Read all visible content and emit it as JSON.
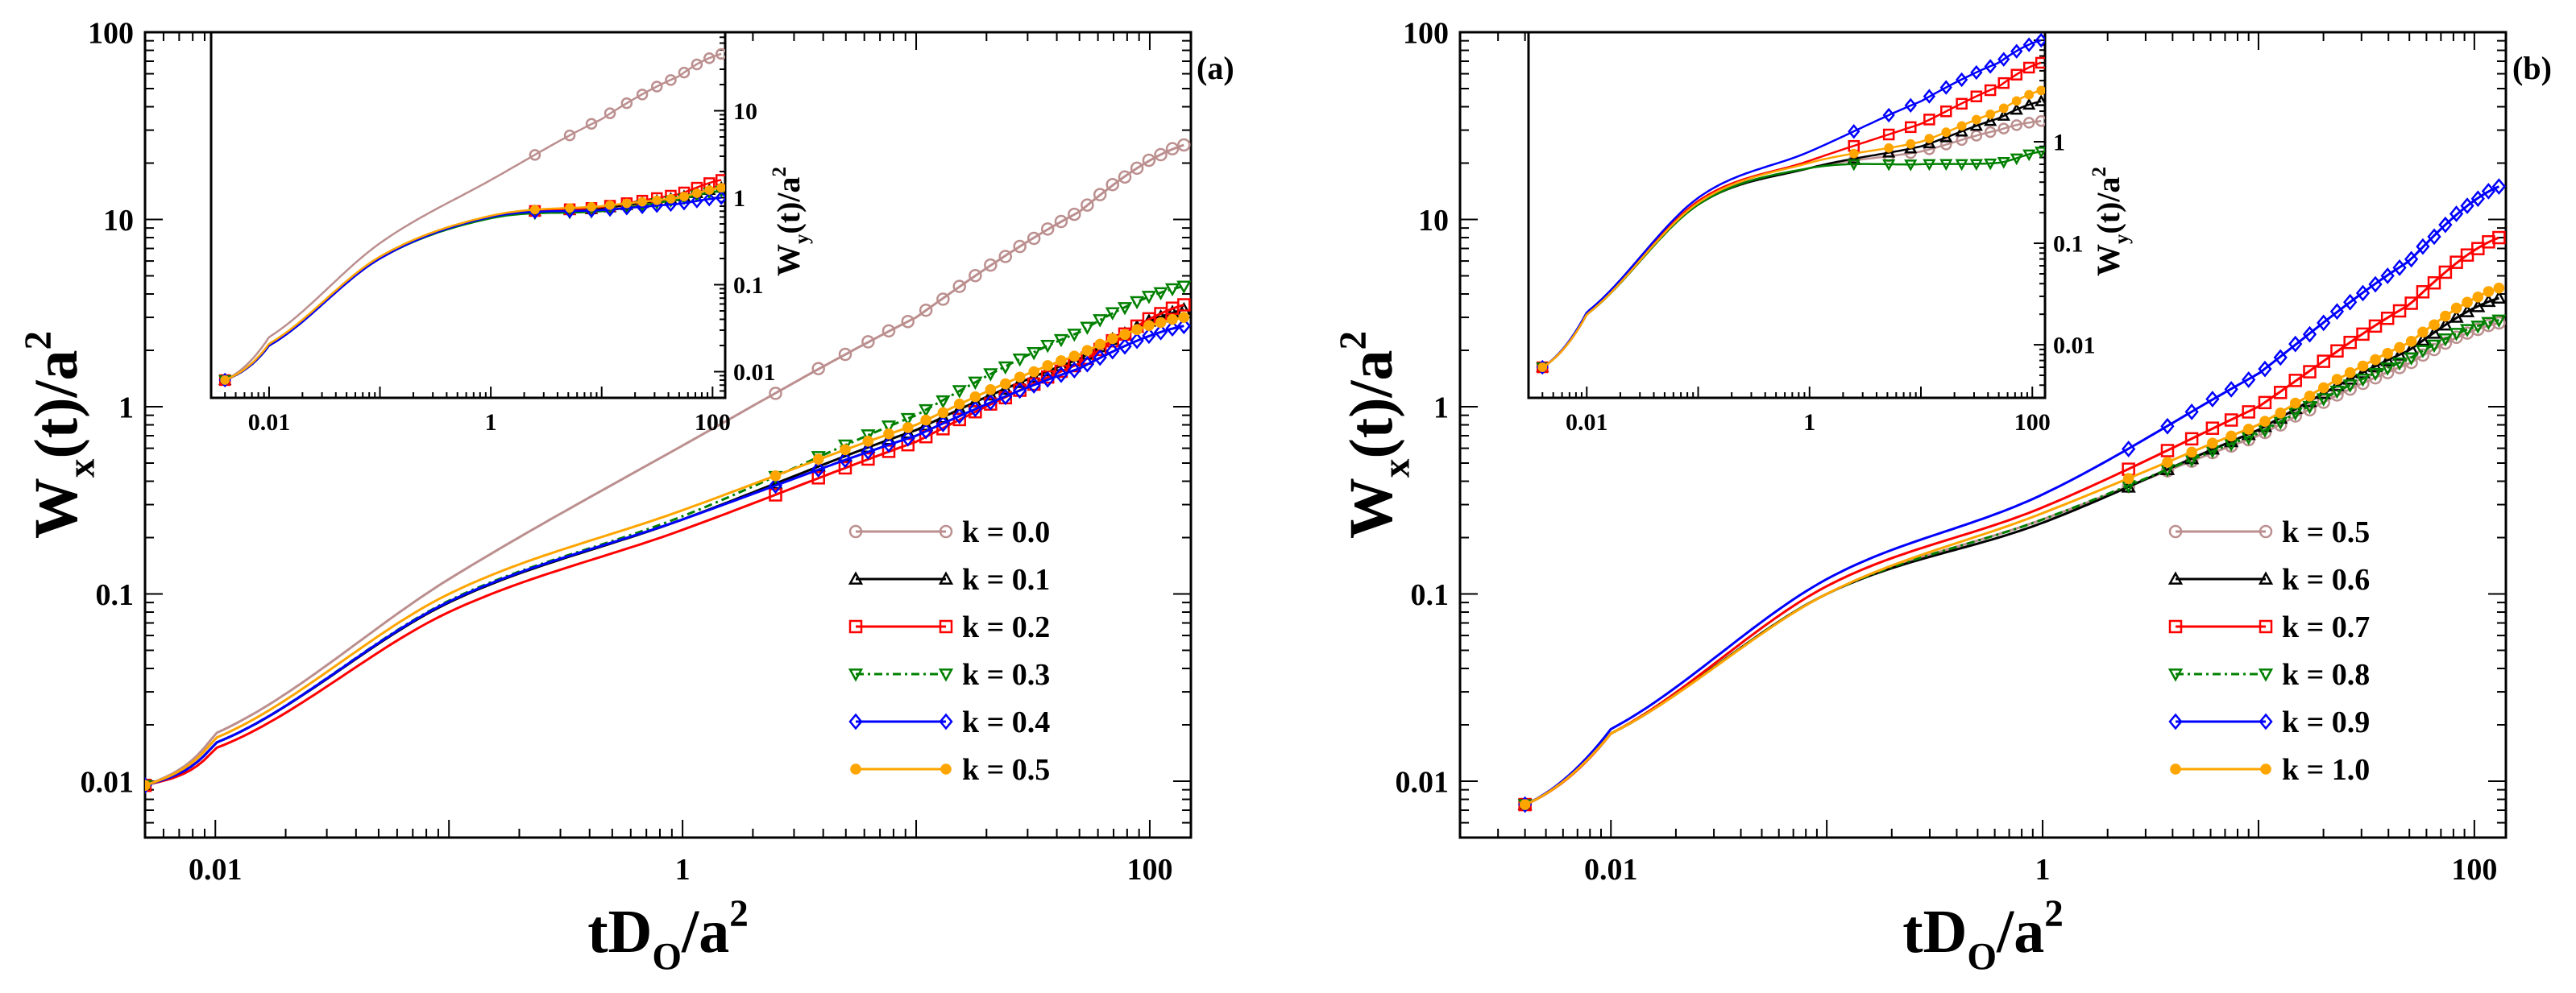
{
  "chart_data": [
    {
      "panel": "(a)",
      "type": "line",
      "scale": "log-log",
      "xlabel": {
        "base": "tD",
        "sub": "O",
        "mid": "/a",
        "sup": "2"
      },
      "ylabel": {
        "base": "W",
        "sub": "x",
        "mid": "(t)/a",
        "sup": "2"
      },
      "xlim": [
        0.005,
        150
      ],
      "ylim": [
        0.005,
        100
      ],
      "xticks": [
        {
          "v": 0.01,
          "label": "0.01"
        },
        {
          "v": 1,
          "label": "1"
        },
        {
          "v": 100,
          "label": "100"
        }
      ],
      "yticks": [
        {
          "v": 0.01,
          "label": "0.01"
        },
        {
          "v": 0.1,
          "label": "0.1"
        },
        {
          "v": 1,
          "label": "1"
        },
        {
          "v": 10,
          "label": "10"
        },
        {
          "v": 100,
          "label": "100"
        }
      ],
      "series": [
        {
          "name": "k = 0.0",
          "color": "#bc8f8f",
          "marker": "circle",
          "dash": "",
          "x": [
            0.005,
            0.01,
            0.1,
            1,
            10,
            50,
            140
          ],
          "y": [
            0.0095,
            0.018,
            0.12,
            0.62,
            3.0,
            11,
            25
          ]
        },
        {
          "name": "k = 0.1",
          "color": "#000000",
          "marker": "triangle-up",
          "dash": "",
          "x": [
            0.005,
            0.01,
            0.1,
            1,
            10,
            50,
            140
          ],
          "y": [
            0.0095,
            0.016,
            0.09,
            0.25,
            0.75,
            1.8,
            3.3
          ]
        },
        {
          "name": "k = 0.2",
          "color": "#ff0000",
          "marker": "square",
          "dash": "",
          "x": [
            0.005,
            0.01,
            0.1,
            1,
            10,
            50,
            140
          ],
          "y": [
            0.0095,
            0.015,
            0.08,
            0.22,
            0.65,
            1.7,
            3.5
          ]
        },
        {
          "name": "k = 0.3",
          "color": "#008000",
          "marker": "triangle-down",
          "dash": "10,5,3,5",
          "x": [
            0.005,
            0.01,
            0.1,
            1,
            10,
            50,
            140
          ],
          "y": [
            0.0095,
            0.016,
            0.092,
            0.26,
            0.9,
            2.5,
            4.4
          ]
        },
        {
          "name": "k = 0.4",
          "color": "#0000ff",
          "marker": "diamond",
          "dash": "",
          "x": [
            0.005,
            0.01,
            0.1,
            1,
            10,
            50,
            140
          ],
          "y": [
            0.0095,
            0.016,
            0.091,
            0.25,
            0.7,
            1.6,
            2.7
          ]
        },
        {
          "name": "k = 0.5",
          "color": "#ffa500",
          "marker": "dot",
          "dash": "",
          "x": [
            0.005,
            0.01,
            0.1,
            1,
            10,
            50,
            140
          ],
          "y": [
            0.0095,
            0.017,
            0.1,
            0.28,
            0.8,
            1.9,
            3.0
          ]
        }
      ],
      "inset": {
        "scale": "log-log",
        "ylabel": {
          "base": "W",
          "sub": "y",
          "mid": "(t)/a",
          "sup": "2"
        },
        "xlim": [
          0.003,
          130
        ],
        "ylim": [
          0.005,
          80
        ],
        "xticks": [
          {
            "v": 0.01,
            "label": "0.01"
          },
          {
            "v": 1,
            "label": "1"
          },
          {
            "v": 100,
            "label": "100"
          }
        ],
        "yticks": [
          {
            "v": 0.01,
            "label": "0.01"
          },
          {
            "v": 0.1,
            "label": "0.1"
          },
          {
            "v": 1,
            "label": "1"
          },
          {
            "v": 10,
            "label": "10"
          }
        ],
        "series": [
          {
            "name": "k = 0.0",
            "color": "#bc8f8f",
            "marker": "circle",
            "x": [
              0.004,
              0.01,
              0.1,
              1,
              10,
              50,
              120
            ],
            "y": [
              0.008,
              0.025,
              0.3,
              1.6,
              8,
              25,
              45
            ]
          },
          {
            "name": "k = 0.1",
            "color": "#000000",
            "marker": "triangle-up",
            "x": [
              0.004,
              0.01,
              0.1,
              1,
              10,
              50,
              120
            ],
            "y": [
              0.008,
              0.02,
              0.2,
              0.6,
              0.75,
              1.0,
              1.3
            ]
          },
          {
            "name": "k = 0.2",
            "color": "#ff0000",
            "marker": "square",
            "x": [
              0.004,
              0.01,
              0.1,
              1,
              10,
              50,
              120
            ],
            "y": [
              0.008,
              0.02,
              0.2,
              0.6,
              0.78,
              1.1,
              1.6
            ]
          },
          {
            "name": "k = 0.3",
            "color": "#008000",
            "marker": "triangle-down",
            "x": [
              0.004,
              0.01,
              0.1,
              1,
              10,
              50,
              120
            ],
            "y": [
              0.008,
              0.02,
              0.2,
              0.58,
              0.7,
              0.95,
              1.2
            ]
          },
          {
            "name": "k = 0.4",
            "color": "#0000ff",
            "marker": "diamond",
            "x": [
              0.004,
              0.01,
              0.1,
              1,
              10,
              50,
              120
            ],
            "y": [
              0.008,
              0.02,
              0.2,
              0.6,
              0.72,
              0.85,
              1.0
            ]
          },
          {
            "name": "k = 0.5",
            "color": "#ffa500",
            "marker": "dot",
            "x": [
              0.004,
              0.01,
              0.1,
              1,
              10,
              50,
              120
            ],
            "y": [
              0.008,
              0.021,
              0.21,
              0.62,
              0.8,
              1.0,
              1.3
            ]
          }
        ]
      }
    },
    {
      "panel": "(b)",
      "type": "line",
      "scale": "log-log",
      "xlabel": {
        "base": "tD",
        "sub": "O",
        "mid": "/a",
        "sup": "2"
      },
      "ylabel": {
        "base": "W",
        "sub": "x",
        "mid": "(t)/a",
        "sup": "2"
      },
      "xlim": [
        0.002,
        140
      ],
      "ylim": [
        0.005,
        100
      ],
      "xticks": [
        {
          "v": 0.01,
          "label": "0.01"
        },
        {
          "v": 1,
          "label": "1"
        },
        {
          "v": 100,
          "label": "100"
        }
      ],
      "yticks": [
        {
          "v": 0.01,
          "label": "0.01"
        },
        {
          "v": 0.1,
          "label": "0.1"
        },
        {
          "v": 1,
          "label": "1"
        },
        {
          "v": 10,
          "label": "10"
        },
        {
          "v": 100,
          "label": "100"
        }
      ],
      "series": [
        {
          "name": "k = 0.5",
          "color": "#bc8f8f",
          "marker": "circle",
          "dash": "",
          "x": [
            0.004,
            0.01,
            0.1,
            1,
            10,
            50,
            130
          ],
          "y": [
            0.0075,
            0.018,
            0.1,
            0.25,
            0.7,
            1.7,
            2.8
          ]
        },
        {
          "name": "k = 0.6",
          "color": "#000000",
          "marker": "triangle-up",
          "dash": "",
          "x": [
            0.004,
            0.01,
            0.1,
            1,
            10,
            50,
            130
          ],
          "y": [
            0.0075,
            0.018,
            0.1,
            0.24,
            0.75,
            2.0,
            3.8
          ]
        },
        {
          "name": "k = 0.7",
          "color": "#ff0000",
          "marker": "square",
          "dash": "",
          "x": [
            0.004,
            0.01,
            0.1,
            1,
            10,
            50,
            130
          ],
          "y": [
            0.0075,
            0.018,
            0.11,
            0.29,
            1.0,
            3.5,
            8
          ]
        },
        {
          "name": "k = 0.8",
          "color": "#008000",
          "marker": "triangle-down",
          "dash": "10,5,3,5",
          "x": [
            0.004,
            0.01,
            0.1,
            1,
            10,
            50,
            130
          ],
          "y": [
            0.0075,
            0.018,
            0.1,
            0.25,
            0.72,
            1.8,
            2.9
          ]
        },
        {
          "name": "k = 0.9",
          "color": "#0000ff",
          "marker": "diamond",
          "dash": "",
          "x": [
            0.004,
            0.01,
            0.1,
            1,
            10,
            50,
            130
          ],
          "y": [
            0.0075,
            0.019,
            0.12,
            0.34,
            1.5,
            6.0,
            15
          ]
        },
        {
          "name": "k = 1.0",
          "color": "#ffa500",
          "marker": "dot",
          "dash": "",
          "x": [
            0.004,
            0.01,
            0.1,
            1,
            10,
            50,
            130
          ],
          "y": [
            0.0075,
            0.018,
            0.1,
            0.27,
            0.8,
            2.2,
            4.3
          ]
        }
      ],
      "inset": {
        "scale": "log-log",
        "ylabel": {
          "base": "W",
          "sub": "y",
          "mid": "(t)/a",
          "sup": "2"
        },
        "xlim": [
          0.003,
          130
        ],
        "ylim": [
          0.003,
          12
        ],
        "xticks": [
          {
            "v": 0.01,
            "label": "0.01"
          },
          {
            "v": 1,
            "label": "1"
          },
          {
            "v": 100,
            "label": "100"
          }
        ],
        "yticks": [
          {
            "v": 0.01,
            "label": "0.01"
          },
          {
            "v": 0.1,
            "label": "0.1"
          },
          {
            "v": 1,
            "label": "1"
          }
        ],
        "series": [
          {
            "name": "k = 0.5",
            "color": "#bc8f8f",
            "marker": "circle",
            "x": [
              0.004,
              0.01,
              0.1,
              1,
              10,
              50,
              120
            ],
            "y": [
              0.006,
              0.02,
              0.25,
              0.55,
              0.8,
              1.3,
              1.6
            ]
          },
          {
            "name": "k = 0.6",
            "color": "#000000",
            "marker": "triangle-up",
            "x": [
              0.004,
              0.01,
              0.1,
              1,
              10,
              50,
              120
            ],
            "y": [
              0.006,
              0.02,
              0.24,
              0.55,
              0.9,
              1.7,
              2.5
            ]
          },
          {
            "name": "k = 0.7",
            "color": "#ff0000",
            "marker": "square",
            "x": [
              0.004,
              0.01,
              0.1,
              1,
              10,
              50,
              120
            ],
            "y": [
              0.006,
              0.02,
              0.26,
              0.65,
              1.5,
              3.5,
              6
            ]
          },
          {
            "name": "k = 0.8",
            "color": "#008000",
            "marker": "triangle-down",
            "x": [
              0.004,
              0.01,
              0.1,
              1,
              10,
              50,
              120
            ],
            "y": [
              0.006,
              0.02,
              0.24,
              0.55,
              0.6,
              0.62,
              0.8
            ]
          },
          {
            "name": "k = 0.9",
            "color": "#0000ff",
            "marker": "diamond",
            "x": [
              0.004,
              0.01,
              0.1,
              1,
              10,
              50,
              120
            ],
            "y": [
              0.006,
              0.021,
              0.28,
              0.8,
              2.5,
              6,
              10
            ]
          },
          {
            "name": "k = 1.0",
            "color": "#ffa500",
            "marker": "dot",
            "x": [
              0.004,
              0.01,
              0.1,
              1,
              10,
              50,
              120
            ],
            "y": [
              0.006,
              0.02,
              0.25,
              0.62,
              1.0,
              2.0,
              3.2
            ]
          }
        ]
      }
    }
  ]
}
